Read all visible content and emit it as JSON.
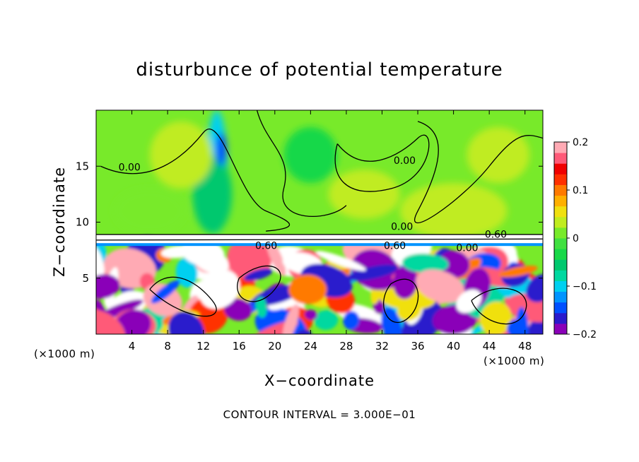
{
  "chart_data": {
    "type": "heatmap",
    "title": "disturbunce of potential temperature",
    "xlabel": "X−coordinate",
    "ylabel": "Z−coordinate",
    "x_unit_label": "(×1000 m)",
    "x_unit_label_right": "(×1000 m)",
    "footer": "CONTOUR INTERVAL = 3.000E−01",
    "xlim": [
      0,
      50
    ],
    "ylim": [
      0,
      20
    ],
    "x_ticks": [
      "4",
      "8",
      "12",
      "16",
      "20",
      "24",
      "28",
      "32",
      "36",
      "40",
      "44",
      "48"
    ],
    "x_tick_values": [
      4,
      8,
      12,
      16,
      20,
      24,
      28,
      32,
      36,
      40,
      44,
      48
    ],
    "y_ticks": [
      "5",
      "10",
      "15"
    ],
    "y_tick_values": [
      5,
      10,
      15
    ],
    "colorbar": {
      "range": [
        -0.2,
        0.2
      ],
      "tick_labels": [
        "0.2",
        "0.1",
        "0",
        "−0.1",
        "−0.2"
      ],
      "tick_values": [
        0.2,
        0.1,
        0,
        -0.1,
        -0.2
      ],
      "colors": [
        "#8a00b8",
        "#2a1acc",
        "#0050ff",
        "#0094ff",
        "#00d0f0",
        "#00d8a0",
        "#00c86e",
        "#18d848",
        "#40e040",
        "#78ea2a",
        "#c0ec20",
        "#f0e010",
        "#ffb000",
        "#ff7a00",
        "#ff3000",
        "#f00000",
        "#ff5a78",
        "#ffaab4"
      ]
    },
    "background_value": 0.0,
    "layer_interface_z": 8.0,
    "contour_labels": [
      {
        "text": "0.00",
        "x": 2.5,
        "z": 14.6
      },
      {
        "text": "0.00",
        "x": 33.3,
        "z": 15.2
      },
      {
        "text": "0.00",
        "x": 33.0,
        "z": 9.3
      },
      {
        "text": "0.60",
        "x": 43.5,
        "z": 8.6
      },
      {
        "text": "0.60",
        "x": 17.8,
        "z": 7.6
      },
      {
        "text": "0.60",
        "x": 32.2,
        "z": 7.6
      },
      {
        "text": "0.00",
        "x": 40.3,
        "z": 7.4
      }
    ]
  }
}
